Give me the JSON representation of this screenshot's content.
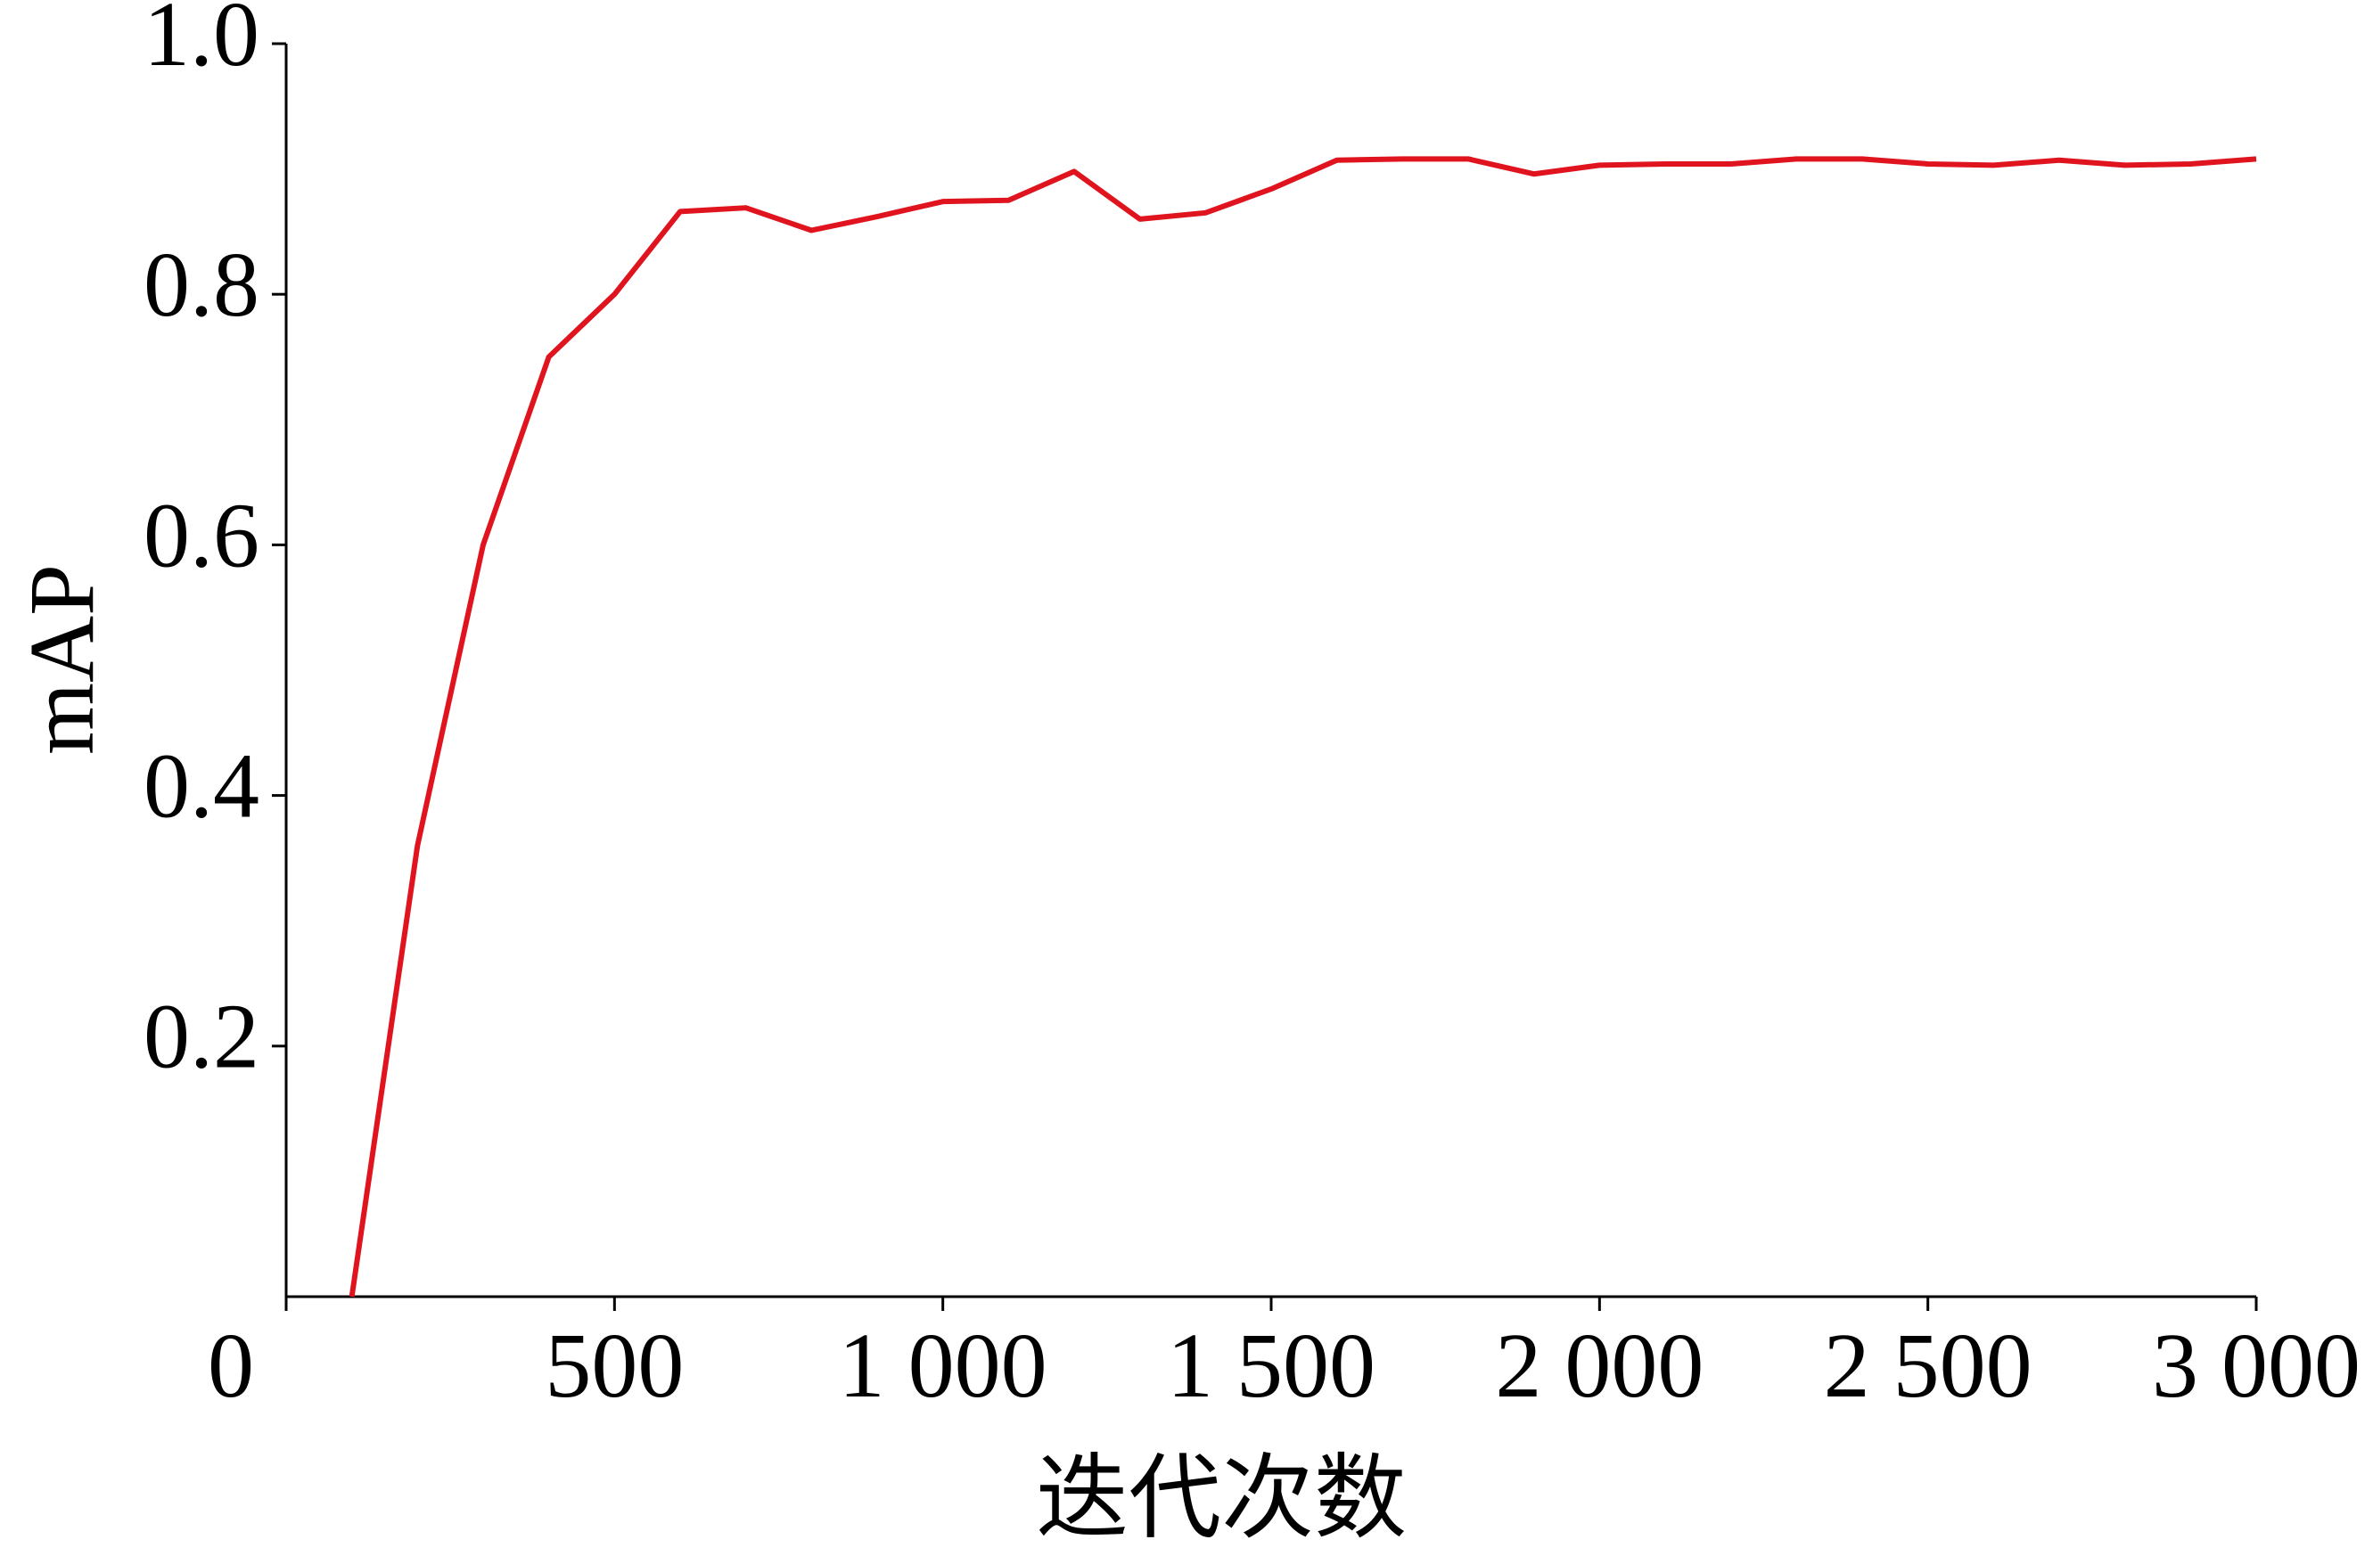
{
  "chart_data": {
    "type": "line",
    "x_label": "迭代次数",
    "y_label": "mAP",
    "x": [
      100,
      200,
      300,
      400,
      500,
      600,
      700,
      800,
      900,
      1000,
      1100,
      1200,
      1300,
      1400,
      1500,
      1600,
      1700,
      1800,
      1900,
      2000,
      2100,
      2200,
      2300,
      2400,
      2500,
      2600,
      2700,
      2800,
      2900,
      3000
    ],
    "series": [
      {
        "color": "#e0141e",
        "values": [
          0,
          0.36,
          0.6,
          0.75,
          0.8,
          0.866,
          0.869,
          0.851,
          0.862,
          0.874,
          0.875,
          0.898,
          0.86,
          0.865,
          0.884,
          0.907,
          0.908,
          0.908,
          0.896,
          0.903,
          0.904,
          0.904,
          0.908,
          0.908,
          0.904,
          0.903,
          0.907,
          0.903,
          0.904,
          0.908
        ]
      }
    ],
    "xlim": [
      0,
      3000
    ],
    "ylim": [
      0,
      1
    ],
    "xticks": [
      0,
      500,
      {
        "value": 1000,
        "label": "1 000"
      },
      {
        "value": 1500,
        "label": "1 500"
      },
      {
        "value": 2000,
        "label": "2 000"
      },
      {
        "value": 2500,
        "label": "2 500"
      },
      {
        "value": 3000,
        "label": "3 000"
      }
    ],
    "yticks": [
      0.2,
      0.4,
      0.6,
      0.8,
      {
        "value": 1,
        "label": "1.0"
      }
    ],
    "grid": false
  }
}
